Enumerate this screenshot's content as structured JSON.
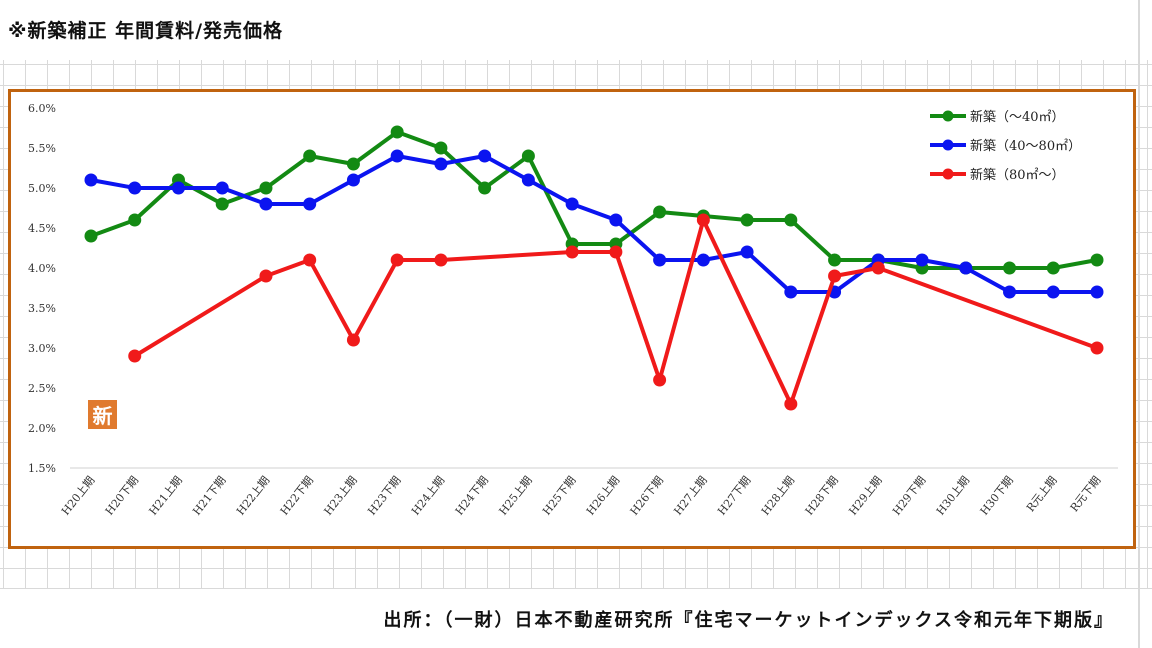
{
  "header": {
    "title": "※新築補正 年間賃料/発売価格"
  },
  "footer": {
    "source": "出所：（一財）日本不動産研究所『住宅マーケットインデックス令和元年下期版』"
  },
  "badge": {
    "text": "新"
  },
  "colors": {
    "frame": "#c0630f",
    "green": "#138a13",
    "blue": "#0b14f0",
    "red": "#f01a1a"
  },
  "chart_data": {
    "type": "line",
    "title": "",
    "xlabel": "",
    "ylabel": "",
    "ylim": [
      1.5,
      6.0
    ],
    "yticks": [
      "6.0%",
      "5.5%",
      "5.0%",
      "4.5%",
      "4.0%",
      "3.5%",
      "3.0%",
      "2.5%",
      "2.0%",
      "1.5%"
    ],
    "categories": [
      "H20上期",
      "H20下期",
      "H21上期",
      "H21下期",
      "H22上期",
      "H22下期",
      "H23上期",
      "H23下期",
      "H24上期",
      "H24下期",
      "H25上期",
      "H25下期",
      "H26上期",
      "H26下期",
      "H27上期",
      "H27下期",
      "H28上期",
      "H28下期",
      "H29上期",
      "H29下期",
      "H30上期",
      "H30下期",
      "R元上期",
      "R元下期"
    ],
    "legend_position": "top-right",
    "series": [
      {
        "name": "新築（～40㎡）",
        "color": "#138a13",
        "values": [
          4.4,
          4.6,
          5.1,
          4.8,
          5.0,
          5.4,
          5.3,
          5.7,
          5.5,
          5.0,
          5.4,
          4.3,
          4.3,
          4.7,
          4.65,
          4.6,
          4.6,
          4.1,
          4.1,
          4.0,
          4.0,
          4.0,
          4.0,
          4.1
        ]
      },
      {
        "name": "新築（40～80㎡）",
        "color": "#0b14f0",
        "values": [
          5.1,
          5.0,
          5.0,
          5.0,
          4.8,
          4.8,
          5.1,
          5.4,
          5.3,
          5.4,
          5.1,
          4.8,
          4.6,
          4.1,
          4.1,
          4.2,
          3.7,
          3.7,
          4.1,
          4.1,
          4.0,
          3.7,
          3.7,
          3.7
        ]
      },
      {
        "name": "新築（80㎡～）",
        "color": "#f01a1a",
        "values": [
          null,
          2.9,
          null,
          null,
          3.9,
          4.1,
          3.1,
          4.1,
          4.1,
          null,
          null,
          4.2,
          4.2,
          2.6,
          4.6,
          null,
          2.3,
          3.9,
          4.0,
          null,
          null,
          null,
          null,
          3.0
        ]
      }
    ]
  }
}
